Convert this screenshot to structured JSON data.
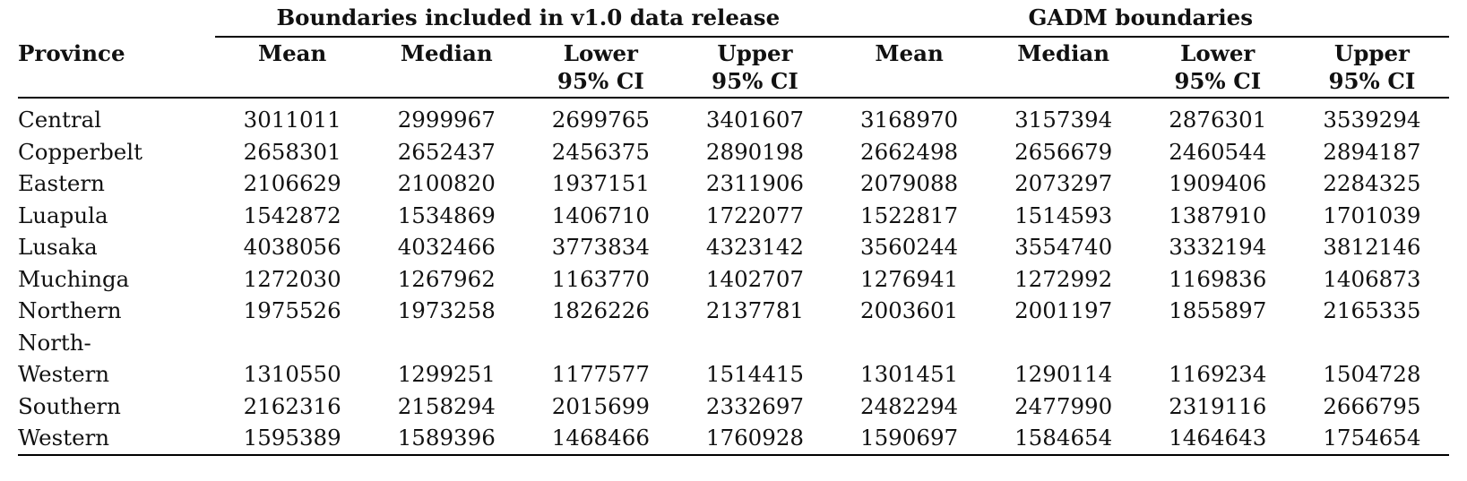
{
  "table": {
    "group_headers": [
      "Boundaries included in v1.0 data release",
      "GADM boundaries"
    ],
    "province_header": "Province",
    "sub_headers": [
      [
        "Mean"
      ],
      [
        "Median"
      ],
      [
        "Lower",
        "95% CI"
      ],
      [
        "Upper",
        "95% CI"
      ],
      [
        "Mean"
      ],
      [
        "Median"
      ],
      [
        "Lower",
        "95% CI"
      ],
      [
        "Upper",
        "95% CI"
      ]
    ],
    "rows": [
      {
        "province": [
          "Central"
        ],
        "values": [
          "3011011",
          "2999967",
          "2699765",
          "3401607",
          "3168970",
          "3157394",
          "2876301",
          "3539294"
        ]
      },
      {
        "province": [
          "Copperbelt"
        ],
        "values": [
          "2658301",
          "2652437",
          "2456375",
          "2890198",
          "2662498",
          "2656679",
          "2460544",
          "2894187"
        ]
      },
      {
        "province": [
          "Eastern"
        ],
        "values": [
          "2106629",
          "2100820",
          "1937151",
          "2311906",
          "2079088",
          "2073297",
          "1909406",
          "2284325"
        ]
      },
      {
        "province": [
          "Luapula"
        ],
        "values": [
          "1542872",
          "1534869",
          "1406710",
          "1722077",
          "1522817",
          "1514593",
          "1387910",
          "1701039"
        ]
      },
      {
        "province": [
          "Lusaka"
        ],
        "values": [
          "4038056",
          "4032466",
          "3773834",
          "4323142",
          "3560244",
          "3554740",
          "3332194",
          "3812146"
        ]
      },
      {
        "province": [
          "Muchinga"
        ],
        "values": [
          "1272030",
          "1267962",
          "1163770",
          "1402707",
          "1276941",
          "1272992",
          "1169836",
          "1406873"
        ]
      },
      {
        "province": [
          "Northern"
        ],
        "values": [
          "1975526",
          "1973258",
          "1826226",
          "2137781",
          "2003601",
          "2001197",
          "1855897",
          "2165335"
        ]
      },
      {
        "province": [
          "North-",
          "Western"
        ],
        "values": [
          "1310550",
          "1299251",
          "1177577",
          "1514415",
          "1301451",
          "1290114",
          "1169234",
          "1504728"
        ]
      },
      {
        "province": [
          "Southern"
        ],
        "values": [
          "2162316",
          "2158294",
          "2015699",
          "2332697",
          "2482294",
          "2477990",
          "2319116",
          "2666795"
        ]
      },
      {
        "province": [
          "Western"
        ],
        "values": [
          "1595389",
          "1589396",
          "1468466",
          "1760928",
          "1590697",
          "1584654",
          "1464643",
          "1754654"
        ]
      }
    ]
  }
}
